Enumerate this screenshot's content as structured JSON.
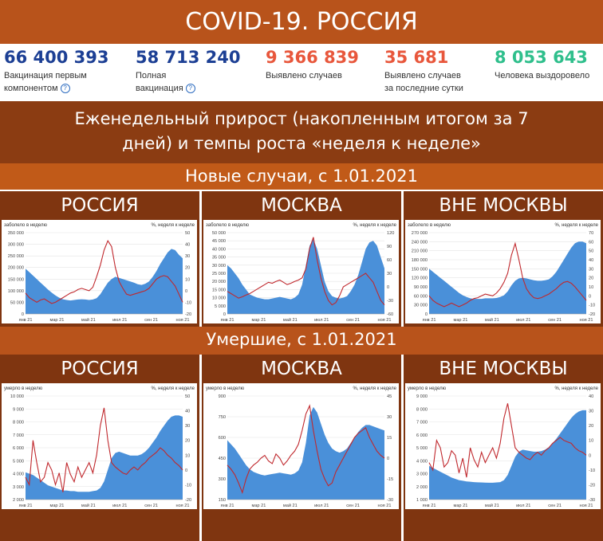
{
  "header": {
    "title": "COVID-19. РОССИЯ"
  },
  "stats": [
    {
      "value": "66 400 393",
      "label1": "Вакцинация первым",
      "label2": "компонентом",
      "help": "?",
      "color": "#1c3f94"
    },
    {
      "value": "58 713 240",
      "label1": "Полная",
      "label2": "вакцинация",
      "help": "?",
      "color": "#1c3f94"
    },
    {
      "value": "9 366 839",
      "label1": "Выявлено случаев",
      "label2": "",
      "help": "",
      "color": "#e8573c"
    },
    {
      "value": "35 681",
      "label1": "Выявлено случаев",
      "label2": "за последние сутки",
      "help": "",
      "color": "#e8573c"
    },
    {
      "value": "8 053 643",
      "label1": "Человека выздоровело",
      "label2": "",
      "help": "",
      "color": "#2fbf8c"
    }
  ],
  "subtitle": {
    "line1": "Еженедельный прирост (накопленным итогом за 7",
    "line2": "дней) и темпы роста «неделя к неделе»"
  },
  "sections": [
    {
      "title": "Новые случаи, с 1.01.2021"
    },
    {
      "title": "Умершие, с 1.01.2021"
    }
  ],
  "chart_data": [
    {
      "type": "area",
      "section": "Новые случаи, с 1.01.2021",
      "title": "РОССИЯ",
      "ylabel": "заболело в неделю",
      "y2label": "%, неделя к неделе",
      "ylim": [
        0,
        350000
      ],
      "y2lim": [
        -20,
        50
      ],
      "yticks": [
        "350 000",
        "300 000",
        "250 000",
        "200 000",
        "150 000",
        "100 000",
        "50 000",
        "0"
      ],
      "y2ticks": [
        "50",
        "40",
        "30",
        "20",
        "10",
        "0",
        "-10",
        "-20"
      ],
      "xticks": [
        "янв 21",
        "мар 21",
        "май 21",
        "июл 21",
        "сен 21",
        "ноя 21"
      ],
      "series": [
        {
          "type": "area",
          "color": "#4a90d9",
          "values": [
            195000,
            180000,
            165000,
            150000,
            135000,
            120000,
            105000,
            92000,
            80000,
            70000,
            63000,
            60000,
            58000,
            60000,
            62000,
            63000,
            62000,
            60000,
            62000,
            68000,
            85000,
            110000,
            135000,
            150000,
            160000,
            155000,
            150000,
            145000,
            140000,
            135000,
            128000,
            125000,
            130000,
            140000,
            160000,
            185000,
            215000,
            240000,
            265000,
            280000,
            275000,
            255000,
            240000
          ]
        },
        {
          "type": "line",
          "color": "#c0282d",
          "values": [
            -2,
            -6,
            -8,
            -10,
            -8,
            -7,
            -9,
            -11,
            -10,
            -8,
            -6,
            -4,
            -2,
            -1,
            1,
            2,
            1,
            0,
            3,
            12,
            22,
            35,
            43,
            38,
            20,
            8,
            2,
            -3,
            -4,
            -3,
            -2,
            -1,
            0,
            2,
            6,
            10,
            12,
            13,
            12,
            8,
            4,
            -3,
            -10
          ]
        }
      ]
    },
    {
      "type": "area",
      "section": "Новые случаи, с 1.01.2021",
      "title": "МОСКВА",
      "ylabel": "заболело в неделю",
      "y2label": "%, неделя к неделе",
      "ylim": [
        0,
        50000
      ],
      "y2lim": [
        -60,
        120
      ],
      "yticks": [
        "50 000",
        "45 000",
        "40 000",
        "35 000",
        "30 000",
        "25 000",
        "20 000",
        "15 000",
        "10 000",
        "5 000",
        "0"
      ],
      "y2ticks": [
        "120",
        "90",
        "60",
        "30",
        "0",
        "-30",
        "-60"
      ],
      "xticks": [
        "янв 21",
        "мар 21",
        "май 21",
        "июл 21",
        "сен 21",
        "ноя 21"
      ],
      "series": [
        {
          "type": "area",
          "color": "#4a90d9",
          "values": [
            30000,
            28000,
            25000,
            22000,
            18000,
            15000,
            12000,
            11000,
            10000,
            9500,
            9000,
            9000,
            9500,
            10000,
            10500,
            10000,
            9500,
            9000,
            10000,
            12000,
            18000,
            30000,
            42000,
            46000,
            40000,
            30000,
            20000,
            14000,
            11000,
            10000,
            9500,
            10000,
            11000,
            14000,
            18000,
            24000,
            32000,
            40000,
            44000,
            45000,
            42000,
            35000,
            28000
          ]
        },
        {
          "type": "line",
          "color": "#c0282d",
          "values": [
            -10,
            -15,
            -20,
            -25,
            -22,
            -18,
            -15,
            -10,
            -5,
            0,
            5,
            10,
            8,
            12,
            15,
            10,
            5,
            8,
            12,
            15,
            20,
            40,
            85,
            110,
            60,
            20,
            -10,
            -30,
            -40,
            -35,
            -20,
            0,
            5,
            10,
            15,
            20,
            25,
            30,
            20,
            10,
            -10,
            -30,
            -40
          ]
        }
      ]
    },
    {
      "type": "area",
      "section": "Новые случаи, с 1.01.2021",
      "title": "ВНЕ МОСКВЫ",
      "ylabel": "заболело в неделю",
      "y2label": "%, неделя к неделе",
      "ylim": [
        0,
        270000
      ],
      "y2lim": [
        -20,
        70
      ],
      "yticks": [
        "270 000",
        "240 000",
        "210 000",
        "180 000",
        "150 000",
        "120 000",
        "90 000",
        "60 000",
        "30 000",
        "0"
      ],
      "y2ticks": [
        "70",
        "60",
        "50",
        "40",
        "30",
        "20",
        "10",
        "0",
        "-10",
        "-20"
      ],
      "xticks": [
        "янв 21",
        "мар 21",
        "май 21",
        "июл 21",
        "сен 21",
        "ноя 21"
      ],
      "series": [
        {
          "type": "area",
          "color": "#4a90d9",
          "values": [
            150000,
            140000,
            130000,
            120000,
            110000,
            100000,
            90000,
            80000,
            70000,
            62000,
            56000,
            52000,
            50000,
            50000,
            50000,
            52000,
            52000,
            52000,
            53000,
            56000,
            62000,
            75000,
            95000,
            110000,
            118000,
            120000,
            118000,
            115000,
            112000,
            110000,
            110000,
            112000,
            115000,
            125000,
            140000,
            160000,
            180000,
            200000,
            220000,
            235000,
            240000,
            240000,
            235000
          ]
        },
        {
          "type": "line",
          "color": "#c0282d",
          "values": [
            0,
            -5,
            -8,
            -10,
            -12,
            -10,
            -8,
            -10,
            -12,
            -10,
            -8,
            -5,
            -3,
            -2,
            0,
            2,
            1,
            0,
            3,
            8,
            15,
            25,
            45,
            58,
            40,
            20,
            8,
            2,
            -2,
            -3,
            -2,
            0,
            2,
            5,
            8,
            12,
            15,
            16,
            14,
            10,
            5,
            0,
            -5
          ]
        }
      ]
    },
    {
      "type": "area",
      "section": "Умершие, с 1.01.2021",
      "title": "РОССИЯ",
      "ylabel": "умерло в неделю",
      "y2label": "%, неделя к неделе",
      "ylim": [
        2000,
        10000
      ],
      "y2lim": [
        -20,
        50
      ],
      "yticks": [
        "10 000",
        "9 000",
        "8 000",
        "7 000",
        "6 000",
        "5 000",
        "4 000",
        "3 000",
        "2 000"
      ],
      "y2ticks": [
        "50",
        "40",
        "30",
        "20",
        "10",
        "0",
        "-10",
        "-20"
      ],
      "xticks": [
        "янв 21",
        "мар 21",
        "май 21",
        "июл 21",
        "сен 21",
        "ноя 21"
      ],
      "series": [
        {
          "type": "area",
          "color": "#4a90d9",
          "values": [
            4100,
            4000,
            3900,
            3700,
            3500,
            3300,
            3100,
            3000,
            2900,
            2800,
            2700,
            2700,
            2650,
            2650,
            2600,
            2600,
            2600,
            2600,
            2650,
            2700,
            2900,
            3400,
            4300,
            5200,
            5600,
            5700,
            5600,
            5500,
            5400,
            5400,
            5400,
            5500,
            5700,
            6000,
            6400,
            6800,
            7300,
            7700,
            8100,
            8400,
            8500,
            8500,
            8400
          ]
        },
        {
          "type": "line",
          "color": "#c0282d",
          "values": [
            -5,
            -10,
            20,
            5,
            -8,
            -5,
            5,
            0,
            -10,
            -2,
            -15,
            5,
            -3,
            -8,
            2,
            -5,
            0,
            5,
            -2,
            10,
            30,
            42,
            20,
            5,
            2,
            0,
            -2,
            -3,
            0,
            2,
            0,
            3,
            5,
            8,
            10,
            12,
            15,
            13,
            10,
            8,
            5,
            3,
            0
          ]
        }
      ]
    },
    {
      "type": "area",
      "section": "Умершие, с 1.01.2021",
      "title": "МОСКВА",
      "ylabel": "умерло в неделю",
      "y2label": "%, неделя к неделе",
      "ylim": [
        150,
        900
      ],
      "y2lim": [
        -30,
        45
      ],
      "yticks": [
        "900",
        "750",
        "600",
        "450",
        "300",
        "150"
      ],
      "y2ticks": [
        "45",
        "30",
        "15",
        "0",
        "-15",
        "-30"
      ],
      "xticks": [
        "янв 21",
        "мар 21",
        "май 21",
        "июл 21",
        "сен 21",
        "ноя 21"
      ],
      "series": [
        {
          "type": "area",
          "color": "#4a90d9",
          "values": [
            580,
            550,
            520,
            480,
            440,
            400,
            370,
            350,
            340,
            330,
            325,
            330,
            335,
            340,
            345,
            340,
            335,
            330,
            340,
            360,
            420,
            560,
            760,
            820,
            780,
            700,
            620,
            560,
            520,
            500,
            490,
            500,
            520,
            560,
            600,
            640,
            670,
            690,
            690,
            680,
            670,
            660,
            650
          ]
        },
        {
          "type": "line",
          "color": "#c0282d",
          "values": [
            -5,
            -8,
            -12,
            -18,
            -25,
            -15,
            -8,
            -5,
            -3,
            0,
            2,
            -2,
            -4,
            3,
            0,
            -5,
            -2,
            2,
            5,
            10,
            20,
            32,
            38,
            20,
            5,
            -8,
            -15,
            -20,
            -18,
            -10,
            -5,
            0,
            5,
            10,
            15,
            18,
            20,
            22,
            15,
            10,
            5,
            2,
            0
          ]
        }
      ]
    },
    {
      "type": "area",
      "section": "Умершие, с 1.01.2021",
      "title": "ВНЕ МОСКВЫ",
      "ylabel": "умерло в неделю",
      "y2label": "%, неделя к неделе",
      "ylim": [
        1000,
        9000
      ],
      "y2lim": [
        -30,
        40
      ],
      "yticks": [
        "9 000",
        "8 000",
        "7 000",
        "6 000",
        "5 000",
        "4 000",
        "3 000",
        "2 000",
        "1 000"
      ],
      "y2ticks": [
        "40",
        "30",
        "20",
        "10",
        "0",
        "-10",
        "-20",
        "-30"
      ],
      "xticks": [
        "янв 21",
        "мар 21",
        "май 21",
        "июл 21",
        "сен 21",
        "ноя 21"
      ],
      "series": [
        {
          "type": "area",
          "color": "#4a90d9",
          "values": [
            3600,
            3450,
            3300,
            3150,
            3000,
            2850,
            2700,
            2600,
            2500,
            2450,
            2400,
            2380,
            2350,
            2330,
            2320,
            2310,
            2300,
            2300,
            2320,
            2350,
            2500,
            2900,
            3600,
            4300,
            4700,
            4850,
            4800,
            4750,
            4700,
            4700,
            4750,
            4850,
            5050,
            5350,
            5700,
            6100,
            6500,
            6900,
            7300,
            7600,
            7800,
            7900,
            7900
          ]
        },
        {
          "type": "line",
          "color": "#c0282d",
          "values": [
            -5,
            -10,
            10,
            5,
            -8,
            -5,
            3,
            0,
            -12,
            -2,
            -15,
            5,
            -3,
            -8,
            2,
            -5,
            0,
            5,
            -2,
            8,
            25,
            35,
            20,
            5,
            2,
            0,
            -2,
            -3,
            0,
            2,
            0,
            3,
            5,
            8,
            10,
            12,
            10,
            9,
            8,
            5,
            3,
            2,
            0
          ]
        }
      ]
    }
  ]
}
